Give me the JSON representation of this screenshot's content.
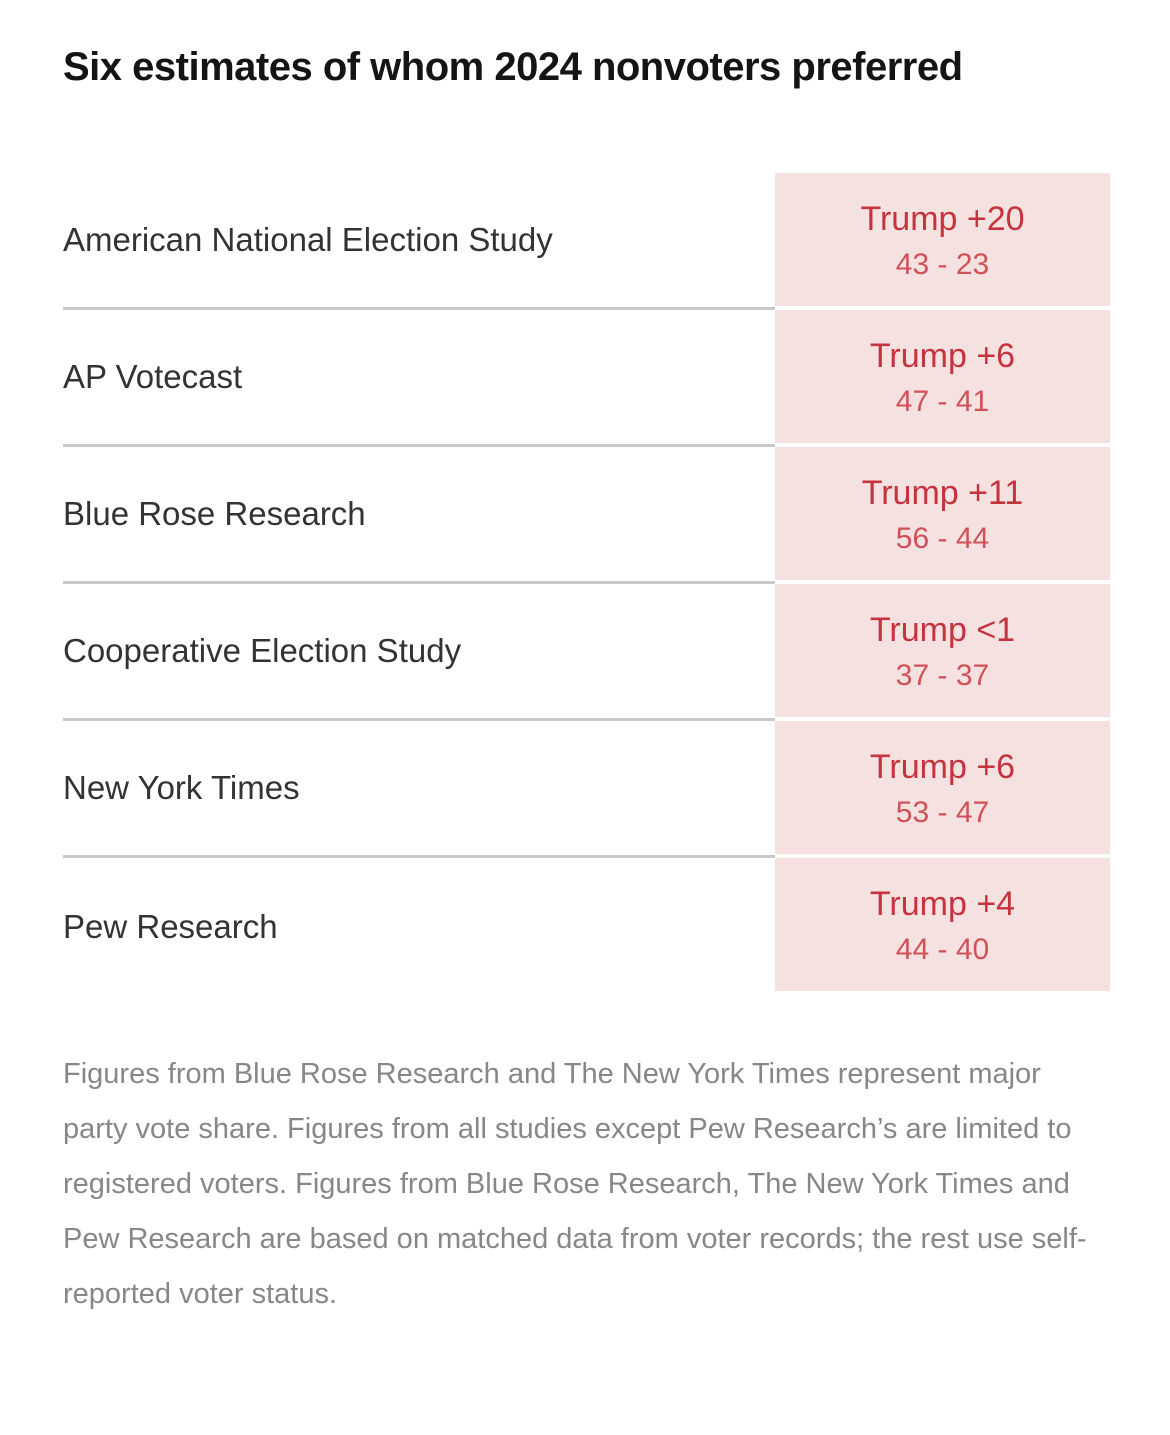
{
  "title": "Six estimates of whom 2024 nonvoters preferred",
  "table": {
    "rows": [
      {
        "label": "American National Election Study",
        "margin": "Trump +20",
        "shares": "43 - 23"
      },
      {
        "label": "AP Votecast",
        "margin": "Trump +6",
        "shares": "47 - 41"
      },
      {
        "label": "Blue Rose Research",
        "margin": "Trump +11",
        "shares": "56 - 44"
      },
      {
        "label": "Cooperative Election Study",
        "margin": "Trump <1",
        "shares": "37 - 37"
      },
      {
        "label": "New York Times",
        "margin": "Trump +6",
        "shares": "53 - 47"
      },
      {
        "label": "Pew Research",
        "margin": "Trump +4",
        "shares": "44 - 40"
      }
    ]
  },
  "footnote": "Figures from Blue Rose Research and The New York Times represent major party vote share. Figures from all studies except Pew Research’s are limited to registered voters. Figures from Blue Rose Research, The New York Times and Pew Research are based on matched data from voter records; the rest use self-reported voter status.",
  "colors": {
    "title": "#141414",
    "label": "#333333",
    "divider": "#c9c9c9",
    "resultbg": "#f6e1e1",
    "red": "#c5343e",
    "redlight": "#d05157",
    "note": "#878787"
  },
  "chart_data": {
    "type": "table",
    "title": "Six estimates of whom 2024 nonvoters preferred",
    "columns": [
      "study",
      "margin_label",
      "shares_shown"
    ],
    "rows": [
      {
        "study": "American National Election Study",
        "margin_label": "Trump +20",
        "values": [
          43,
          23
        ]
      },
      {
        "study": "AP Votecast",
        "margin_label": "Trump +6",
        "values": [
          47,
          41
        ]
      },
      {
        "study": "Blue Rose Research",
        "margin_label": "Trump +11",
        "values": [
          56,
          44
        ]
      },
      {
        "study": "Cooperative Election Study",
        "margin_label": "Trump <1",
        "values": [
          37,
          37
        ]
      },
      {
        "study": "New York Times",
        "margin_label": "Trump +6",
        "values": [
          53,
          47
        ]
      },
      {
        "study": "Pew Research",
        "margin_label": "Trump +4",
        "values": [
          44,
          40
        ]
      }
    ],
    "note": "Figures from Blue Rose Research and The New York Times represent major party vote share. Figures from all studies except Pew Research’s are limited to registered voters. Figures from Blue Rose Research, The New York Times and Pew Research are based on matched data from voter records; the rest use self-reported voter status."
  }
}
